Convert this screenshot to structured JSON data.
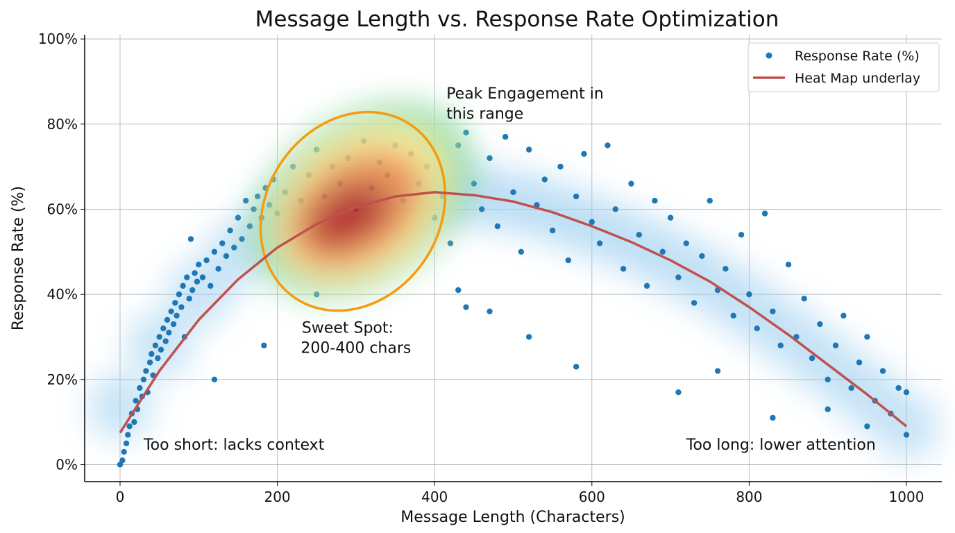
{
  "chart_data": {
    "type": "scatter",
    "title": "Message Length vs. Response Rate Optimization",
    "xlabel": "Message Length (Characters)",
    "ylabel": "Response Rate (%)",
    "xlim": [
      -45,
      1045
    ],
    "ylim": [
      -4,
      101
    ],
    "xticks": [
      0,
      200,
      400,
      600,
      800,
      1000
    ],
    "xtick_labels": [
      "0",
      "200",
      "400",
      "600",
      "800",
      "1000"
    ],
    "yticks": [
      0,
      20,
      40,
      60,
      80,
      100
    ],
    "ytick_labels": [
      "0%",
      "20%",
      "40%",
      "60%",
      "80%",
      "100%"
    ],
    "grid": true,
    "legend_position": "top-right",
    "legend": [
      {
        "label": "Response Rate (%)",
        "kind": "marker",
        "color": "#1f77b4"
      },
      {
        "label": "Heat Map underlay",
        "kind": "line",
        "color": "#c0504d"
      }
    ],
    "colors": {
      "points": "#1f77b4",
      "curve": "#c0504d",
      "highlight_ellipse": "#f39c12"
    },
    "series": [
      {
        "name": "Response Rate (%)",
        "points": [
          [
            0,
            0
          ],
          [
            3,
            1
          ],
          [
            5,
            3
          ],
          [
            8,
            5
          ],
          [
            10,
            7
          ],
          [
            12,
            9
          ],
          [
            15,
            12
          ],
          [
            18,
            10
          ],
          [
            20,
            15
          ],
          [
            22,
            13
          ],
          [
            25,
            18
          ],
          [
            28,
            16
          ],
          [
            30,
            20
          ],
          [
            33,
            22
          ],
          [
            35,
            17
          ],
          [
            38,
            24
          ],
          [
            40,
            26
          ],
          [
            42,
            21
          ],
          [
            45,
            28
          ],
          [
            48,
            25
          ],
          [
            50,
            30
          ],
          [
            52,
            27
          ],
          [
            55,
            32
          ],
          [
            58,
            29
          ],
          [
            60,
            34
          ],
          [
            62,
            31
          ],
          [
            65,
            36
          ],
          [
            68,
            33
          ],
          [
            70,
            38
          ],
          [
            72,
            35
          ],
          [
            75,
            40
          ],
          [
            78,
            37
          ],
          [
            80,
            42
          ],
          [
            82,
            30
          ],
          [
            85,
            44
          ],
          [
            88,
            39
          ],
          [
            90,
            53
          ],
          [
            92,
            41
          ],
          [
            95,
            45
          ],
          [
            98,
            43
          ],
          [
            100,
            47
          ],
          [
            105,
            44
          ],
          [
            110,
            48
          ],
          [
            115,
            42
          ],
          [
            120,
            50
          ],
          [
            125,
            46
          ],
          [
            130,
            52
          ],
          [
            135,
            49
          ],
          [
            140,
            55
          ],
          [
            145,
            51
          ],
          [
            150,
            58
          ],
          [
            155,
            53
          ],
          [
            160,
            62
          ],
          [
            165,
            56
          ],
          [
            170,
            60
          ],
          [
            175,
            63
          ],
          [
            180,
            58
          ],
          [
            185,
            65
          ],
          [
            190,
            61
          ],
          [
            195,
            67
          ],
          [
            200,
            59
          ],
          [
            210,
            64
          ],
          [
            220,
            70
          ],
          [
            230,
            62
          ],
          [
            240,
            68
          ],
          [
            250,
            74
          ],
          [
            260,
            63
          ],
          [
            270,
            70
          ],
          [
            280,
            66
          ],
          [
            290,
            72
          ],
          [
            300,
            60
          ],
          [
            310,
            76
          ],
          [
            320,
            65
          ],
          [
            330,
            71
          ],
          [
            340,
            68
          ],
          [
            350,
            75
          ],
          [
            360,
            62
          ],
          [
            370,
            73
          ],
          [
            380,
            66
          ],
          [
            390,
            70
          ],
          [
            400,
            58
          ],
          [
            410,
            63
          ],
          [
            420,
            52
          ],
          [
            430,
            75
          ],
          [
            440,
            78
          ],
          [
            450,
            66
          ],
          [
            460,
            60
          ],
          [
            470,
            72
          ],
          [
            480,
            56
          ],
          [
            490,
            77
          ],
          [
            500,
            64
          ],
          [
            510,
            50
          ],
          [
            520,
            74
          ],
          [
            530,
            61
          ],
          [
            540,
            67
          ],
          [
            550,
            55
          ],
          [
            560,
            70
          ],
          [
            570,
            48
          ],
          [
            580,
            63
          ],
          [
            590,
            73
          ],
          [
            600,
            57
          ],
          [
            610,
            52
          ],
          [
            620,
            75
          ],
          [
            630,
            60
          ],
          [
            640,
            46
          ],
          [
            650,
            66
          ],
          [
            660,
            54
          ],
          [
            670,
            42
          ],
          [
            680,
            62
          ],
          [
            690,
            50
          ],
          [
            700,
            58
          ],
          [
            710,
            44
          ],
          [
            720,
            52
          ],
          [
            730,
            38
          ],
          [
            740,
            49
          ],
          [
            750,
            62
          ],
          [
            760,
            41
          ],
          [
            770,
            46
          ],
          [
            780,
            35
          ],
          [
            790,
            54
          ],
          [
            800,
            40
          ],
          [
            810,
            32
          ],
          [
            820,
            59
          ],
          [
            830,
            36
          ],
          [
            840,
            28
          ],
          [
            850,
            47
          ],
          [
            860,
            30
          ],
          [
            870,
            39
          ],
          [
            880,
            25
          ],
          [
            890,
            33
          ],
          [
            900,
            20
          ],
          [
            910,
            28
          ],
          [
            920,
            35
          ],
          [
            930,
            18
          ],
          [
            940,
            24
          ],
          [
            950,
            30
          ],
          [
            960,
            15
          ],
          [
            970,
            22
          ],
          [
            980,
            12
          ],
          [
            990,
            18
          ],
          [
            1000,
            7
          ],
          [
            1000,
            17
          ],
          [
            440,
            37
          ],
          [
            470,
            36
          ],
          [
            520,
            30
          ],
          [
            580,
            23
          ],
          [
            710,
            17
          ],
          [
            760,
            22
          ],
          [
            830,
            11
          ],
          [
            900,
            13
          ],
          [
            950,
            9
          ],
          [
            120,
            20
          ],
          [
            183,
            28
          ],
          [
            250,
            40
          ],
          [
            430,
            41
          ]
        ]
      },
      {
        "name": "Heat Map underlay",
        "type": "line",
        "points": [
          [
            0,
            7.5
          ],
          [
            50,
            22
          ],
          [
            100,
            34
          ],
          [
            150,
            43.5
          ],
          [
            200,
            51
          ],
          [
            250,
            56.5
          ],
          [
            300,
            60.5
          ],
          [
            350,
            63
          ],
          [
            400,
            64
          ],
          [
            450,
            63.3
          ],
          [
            500,
            61.8
          ],
          [
            550,
            59.3
          ],
          [
            600,
            56
          ],
          [
            650,
            52.3
          ],
          [
            700,
            48
          ],
          [
            750,
            43
          ],
          [
            800,
            37
          ],
          [
            850,
            30.5
          ],
          [
            900,
            23.5
          ],
          [
            950,
            16.5
          ],
          [
            1000,
            9
          ]
        ]
      }
    ],
    "annotations": [
      {
        "text": [
          "Peak Engagement in",
          "this range"
        ],
        "x": 415,
        "y": 86
      },
      {
        "text": [
          "Sweet Spot:",
          "200-400 chars"
        ],
        "x": 300,
        "y": 31
      },
      {
        "text": [
          "Too short: lacks context"
        ],
        "x": 30,
        "y": 3.5
      },
      {
        "text": [
          "Too long: lower attention"
        ],
        "x": 720,
        "y": 3.5
      }
    ],
    "highlight_region": {
      "x_range": [
        200,
        400
      ],
      "center": [
        300,
        60
      ],
      "shape": "ellipse"
    }
  }
}
